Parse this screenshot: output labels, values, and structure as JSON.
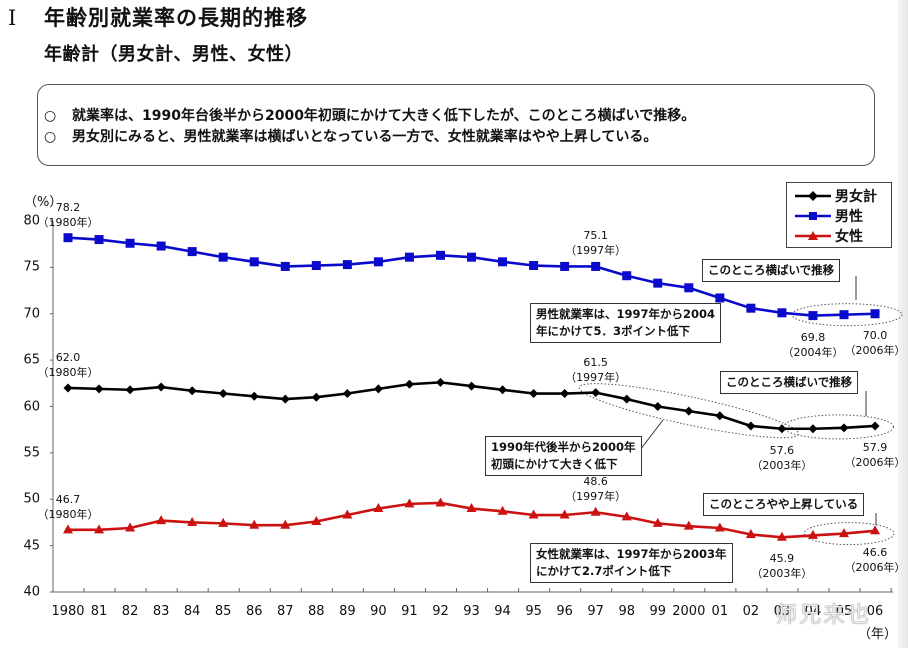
{
  "header": {
    "section_number": "I",
    "title": "年齢別就業率の長期的推移",
    "subtitle": "年齢計（男女計、男性、女性）"
  },
  "summary": {
    "bullet_icon": "○",
    "lines": [
      "就業率は、1990年台後半から2000年初頭にかけて大きく低下したが、このところ横ばいで推移。",
      "男女別にみると、男性就業率は横ばいとなっている一方で、女性就業率はやや上昇している。"
    ]
  },
  "watermark": "师兄来也",
  "chart_data": {
    "type": "line",
    "title": "年齢計（男女計、男性、女性）",
    "xlabel": "（年）",
    "ylabel": "（%）",
    "ylim": [
      40,
      80
    ],
    "yticks": [
      40,
      45,
      50,
      55,
      60,
      65,
      70,
      75,
      80
    ],
    "grid": false,
    "legend_position": "top-right",
    "x": [
      1980,
      1981,
      1982,
      1983,
      1984,
      1985,
      1986,
      1987,
      1988,
      1989,
      1990,
      1991,
      1992,
      1993,
      1994,
      1995,
      1996,
      1997,
      1998,
      1999,
      2000,
      2001,
      2002,
      2003,
      2004,
      2005,
      2006
    ],
    "x_tick_labels": [
      "1980",
      "81",
      "82",
      "83",
      "84",
      "85",
      "86",
      "87",
      "88",
      "89",
      "90",
      "91",
      "92",
      "93",
      "94",
      "95",
      "96",
      "97",
      "98",
      "99",
      "2000",
      "01",
      "02",
      "03",
      "04",
      "05",
      "06"
    ],
    "series": [
      {
        "name": "男女計",
        "color": "#000000",
        "marker": "diamond",
        "values": [
          62.0,
          61.9,
          61.8,
          62.1,
          61.7,
          61.4,
          61.1,
          60.8,
          61.0,
          61.4,
          61.9,
          62.4,
          62.6,
          62.2,
          61.8,
          61.4,
          61.4,
          61.5,
          60.8,
          60.0,
          59.5,
          59.0,
          57.9,
          57.6,
          57.6,
          57.7,
          57.9
        ]
      },
      {
        "name": "男性",
        "color": "#0a0acc",
        "marker": "square",
        "values": [
          78.2,
          78.0,
          77.6,
          77.3,
          76.7,
          76.1,
          75.6,
          75.1,
          75.2,
          75.3,
          75.6,
          76.1,
          76.3,
          76.1,
          75.6,
          75.2,
          75.1,
          75.1,
          74.1,
          73.3,
          72.8,
          71.7,
          70.6,
          70.1,
          69.8,
          69.9,
          70.0
        ]
      },
      {
        "name": "女性",
        "color": "#cc1111",
        "marker": "triangle",
        "values": [
          46.7,
          46.7,
          46.9,
          47.7,
          47.5,
          47.4,
          47.2,
          47.2,
          47.6,
          48.3,
          49.0,
          49.5,
          49.6,
          49.0,
          48.7,
          48.3,
          48.3,
          48.6,
          48.1,
          47.4,
          47.1,
          46.9,
          46.2,
          45.9,
          46.1,
          46.3,
          46.6
        ]
      }
    ],
    "annotations": {
      "point_labels": [
        {
          "series": "男性",
          "year": 1980,
          "value": "78.2",
          "year_label": "（1980年）",
          "pos": "above"
        },
        {
          "series": "男性",
          "year": 1997,
          "value": "75.1",
          "year_label": "（1997年）",
          "pos": "above"
        },
        {
          "series": "男性",
          "year": 2004,
          "value": "69.8",
          "year_label": "（2004年）",
          "pos": "below"
        },
        {
          "series": "男性",
          "year": 2006,
          "value": "70.0",
          "year_label": "（2006年）",
          "pos": "below"
        },
        {
          "series": "男女計",
          "year": 1980,
          "value": "62.0",
          "year_label": "（1980年）",
          "pos": "above"
        },
        {
          "series": "男女計",
          "year": 1997,
          "value": "61.5",
          "year_label": "（1997年）",
          "pos": "above"
        },
        {
          "series": "男女計",
          "year": 2003,
          "value": "57.6",
          "year_label": "（2003年）",
          "pos": "below"
        },
        {
          "series": "男女計",
          "year": 2006,
          "value": "57.9",
          "year_label": "（2006年）",
          "pos": "below"
        },
        {
          "series": "女性",
          "year": 1980,
          "value": "46.7",
          "year_label": "（1980年）",
          "pos": "above"
        },
        {
          "series": "女性",
          "year": 1997,
          "value": "48.6",
          "year_label": "（1997年）",
          "pos": "above"
        },
        {
          "series": "女性",
          "year": 2003,
          "value": "45.9",
          "year_label": "（2003年）",
          "pos": "below"
        },
        {
          "series": "女性",
          "year": 2006,
          "value": "46.6",
          "year_label": "（2006年）",
          "pos": "below"
        }
      ],
      "notes": {
        "male_flat": "このところ横ばいで推移",
        "male_decline": [
          "男性就業率は、1997年から2004",
          "年にかけて5．3ポイント低下"
        ],
        "total_flat": "このところ横ばいで推移",
        "total_decline": [
          "1990年代後半から2000年",
          "初頭にかけて大きく低下"
        ],
        "female_rise": "このところやや上昇している",
        "female_decline": [
          "女性就業率は、1997年から2003年",
          "にかけて2.7ポイント低下"
        ]
      }
    }
  }
}
